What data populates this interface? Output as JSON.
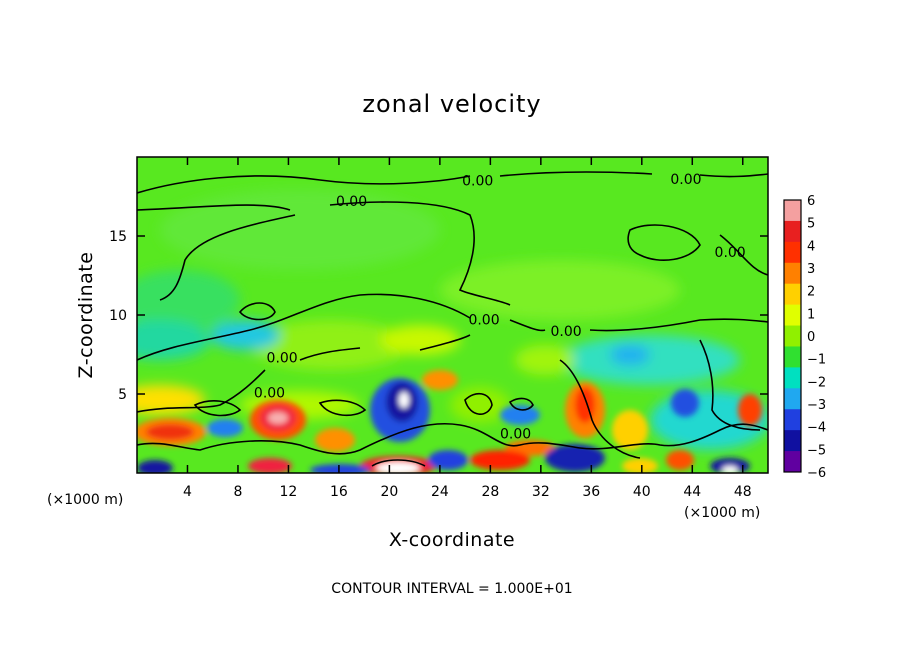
{
  "chart_data": {
    "type": "heatmap",
    "title": "zonal velocity",
    "xlabel": "X-coordinate",
    "ylabel": "Z-coordinate",
    "x_units": "(×1000 m)",
    "z_units": "(×1000 m)",
    "xlim": [
      0,
      50
    ],
    "ylim": [
      0,
      20
    ],
    "x_ticks": [
      4,
      8,
      12,
      16,
      20,
      24,
      28,
      32,
      36,
      40,
      44,
      48
    ],
    "y_ticks": [
      5,
      10,
      15
    ],
    "colorbar": {
      "labels": [
        "6",
        "5",
        "4",
        "3",
        "2",
        "1",
        "0",
        "−1",
        "−2",
        "−3",
        "−4",
        "−5",
        "−6"
      ],
      "values": [
        6,
        5,
        4,
        3,
        2,
        1,
        0,
        -1,
        -2,
        -3,
        -4,
        -5,
        -6
      ],
      "colors": [
        "#f4a0a0",
        "#e82020",
        "#ff3000",
        "#ff8000",
        "#ffd000",
        "#e0ff00",
        "#90f000",
        "#30e030",
        "#00e0c0",
        "#20a8f0",
        "#2040e0",
        "#1010a0",
        "#6000a0"
      ]
    },
    "contour_labels": [
      {
        "text": "0.00",
        "x": 17,
        "y": 17.2
      },
      {
        "text": "0.00",
        "x": 27,
        "y": 18.5
      },
      {
        "text": "0.00",
        "x": 43.5,
        "y": 18.6
      },
      {
        "text": "0.00",
        "x": 47,
        "y": 14
      },
      {
        "text": "0.00",
        "x": 27.5,
        "y": 9.7
      },
      {
        "text": "0.00",
        "x": 34,
        "y": 9
      },
      {
        "text": "0.00",
        "x": 11.5,
        "y": 7.3
      },
      {
        "text": "0.00",
        "x": 10.5,
        "y": 5.1
      },
      {
        "text": "0.00",
        "x": 30,
        "y": 2.5
      }
    ],
    "footer": "CONTOUR INTERVAL = 1.000E+01"
  }
}
